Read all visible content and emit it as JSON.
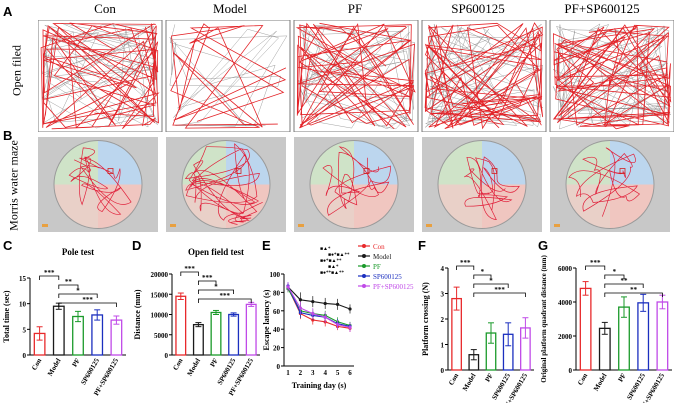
{
  "panel_labels": {
    "A": "A",
    "B": "B",
    "C": "C",
    "D": "D",
    "E": "E",
    "F": "F",
    "G": "G"
  },
  "groups": [
    "Con",
    "Model",
    "PF",
    "SP600125",
    "PF+SP600125"
  ],
  "row_labels": {
    "open_field": "Open filed",
    "morris": "Morris water maze"
  },
  "colors": {
    "Con": "#e8292b",
    "Model": "#1a1a1a",
    "PF": "#1a9a2a",
    "SP600125": "#1b2fbf",
    "PF+SP600125": "#c04ae8",
    "track": "#e32328",
    "grid": "#7a7a7a"
  },
  "chart_data": [
    {
      "id": "C",
      "type": "bar",
      "title": "Pole test",
      "categories": [
        "Con",
        "Model",
        "PF",
        "SP600125",
        "PF+SP600125"
      ],
      "values": [
        4.2,
        9.5,
        7.5,
        7.8,
        6.8
      ],
      "errors": [
        1.3,
        0.6,
        1.0,
        1.0,
        0.8
      ],
      "ylabel": "Total time (sec)",
      "ylim": [
        0,
        15
      ],
      "yticks": [
        0,
        5,
        10,
        15
      ],
      "significance": [
        {
          "from": 0,
          "to": 1,
          "label": "***"
        },
        {
          "from": 1,
          "to": 2,
          "label": "**"
        },
        {
          "from": 1,
          "to": 3,
          "label": "*"
        },
        {
          "from": 1,
          "to": 4,
          "label": "***"
        }
      ]
    },
    {
      "id": "D",
      "type": "bar",
      "title": "Open field test",
      "categories": [
        "Con",
        "Model",
        "PF",
        "SP600125",
        "PF+SP600125"
      ],
      "values": [
        14500,
        7500,
        10500,
        10000,
        12500
      ],
      "errors": [
        800,
        500,
        500,
        400,
        500
      ],
      "ylabel": "Distance (mm)",
      "ylim": [
        0,
        20000
      ],
      "yticks": [
        0,
        5000,
        10000,
        15000,
        20000
      ],
      "significance": [
        {
          "from": 0,
          "to": 1,
          "label": "***"
        },
        {
          "from": 1,
          "to": 2,
          "label": "***"
        },
        {
          "from": 1,
          "to": 3,
          "label": "*"
        },
        {
          "from": 1,
          "to": 4,
          "label": "***"
        }
      ]
    },
    {
      "id": "E",
      "type": "line",
      "x": [
        1,
        2,
        3,
        4,
        5,
        6
      ],
      "series": [
        {
          "name": "Con",
          "values": [
            85,
            57,
            50,
            48,
            43,
            41
          ],
          "err": [
            4,
            6,
            5,
            5,
            4,
            4
          ]
        },
        {
          "name": "Model",
          "values": [
            86,
            72,
            70,
            68,
            67,
            62
          ],
          "err": [
            4,
            8,
            6,
            6,
            6,
            5
          ]
        },
        {
          "name": "PF",
          "values": [
            84,
            60,
            57,
            55,
            48,
            44
          ],
          "err": [
            4,
            6,
            5,
            5,
            5,
            4
          ]
        },
        {
          "name": "SP600125",
          "values": [
            87,
            58,
            55,
            53,
            46,
            43
          ],
          "err": [
            4,
            6,
            5,
            5,
            5,
            4
          ]
        },
        {
          "name": "PF+SP600125",
          "values": [
            86,
            63,
            57,
            53,
            45,
            42
          ],
          "err": [
            5,
            7,
            6,
            6,
            5,
            5
          ]
        }
      ],
      "xlabel": "Training day (s)",
      "ylabel": "Escape latency (s)",
      "ylim": [
        0,
        100
      ],
      "yticks": [
        0,
        20,
        40,
        60,
        80,
        100
      ],
      "annotations": [
        "■▲*",
        "■●*■▲**",
        "■●*■▲**",
        "■▲*",
        "■●**■▲**"
      ],
      "legend": "right"
    },
    {
      "id": "F",
      "type": "bar",
      "categories": [
        "Con",
        "Model",
        "PF",
        "SP600125",
        "PF+SP600125"
      ],
      "values": [
        2.8,
        0.6,
        1.45,
        1.4,
        1.65
      ],
      "errors": [
        0.45,
        0.2,
        0.4,
        0.45,
        0.4
      ],
      "ylabel": "Platform crossing (N)",
      "ylim": [
        0,
        4
      ],
      "yticks": [
        0,
        1,
        2,
        3,
        4
      ],
      "significance": [
        {
          "from": 0,
          "to": 1,
          "label": "***"
        },
        {
          "from": 1,
          "to": 2,
          "label": "*"
        },
        {
          "from": 1,
          "to": 3,
          "label": "*"
        },
        {
          "from": 1,
          "to": 4,
          "label": "***"
        }
      ]
    },
    {
      "id": "G",
      "type": "bar",
      "categories": [
        "Con",
        "Model",
        "PF",
        "SP600125",
        "PF+SP600125"
      ],
      "values": [
        4800,
        2450,
        3700,
        3950,
        4000
      ],
      "errors": [
        400,
        350,
        600,
        500,
        400
      ],
      "ylabel": "Original platform quadrant distance (mm)",
      "ylim": [
        0,
        6000
      ],
      "yticks": [
        0,
        2000,
        4000,
        6000
      ],
      "significance": [
        {
          "from": 0,
          "to": 1,
          "label": "***"
        },
        {
          "from": 1,
          "to": 2,
          "label": "*"
        },
        {
          "from": 1,
          "to": 3,
          "label": "**"
        },
        {
          "from": 1,
          "to": 4,
          "label": "**"
        }
      ]
    }
  ]
}
